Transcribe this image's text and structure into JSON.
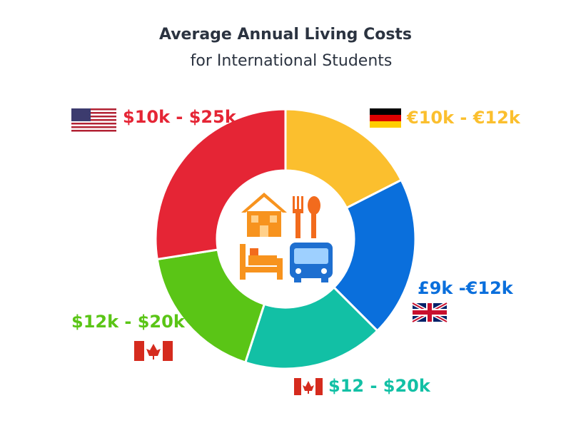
{
  "chart_data": {
    "type": "pie",
    "title": "Average Annual Living Costs",
    "subtitle": "for International Students",
    "categories": [
      "€10k - €12k",
      "£9k -€12k",
      "$12 - $20k",
      "$12k - $20k",
      "$10k - $25k"
    ],
    "values": [
      17.5,
      20,
      17.5,
      17.5,
      27.5
    ],
    "colors": [
      "#fbbf2e",
      "#0a6fdc",
      "#12c0a5",
      "#5ac516",
      "#e52535"
    ],
    "donut": true
  }
}
